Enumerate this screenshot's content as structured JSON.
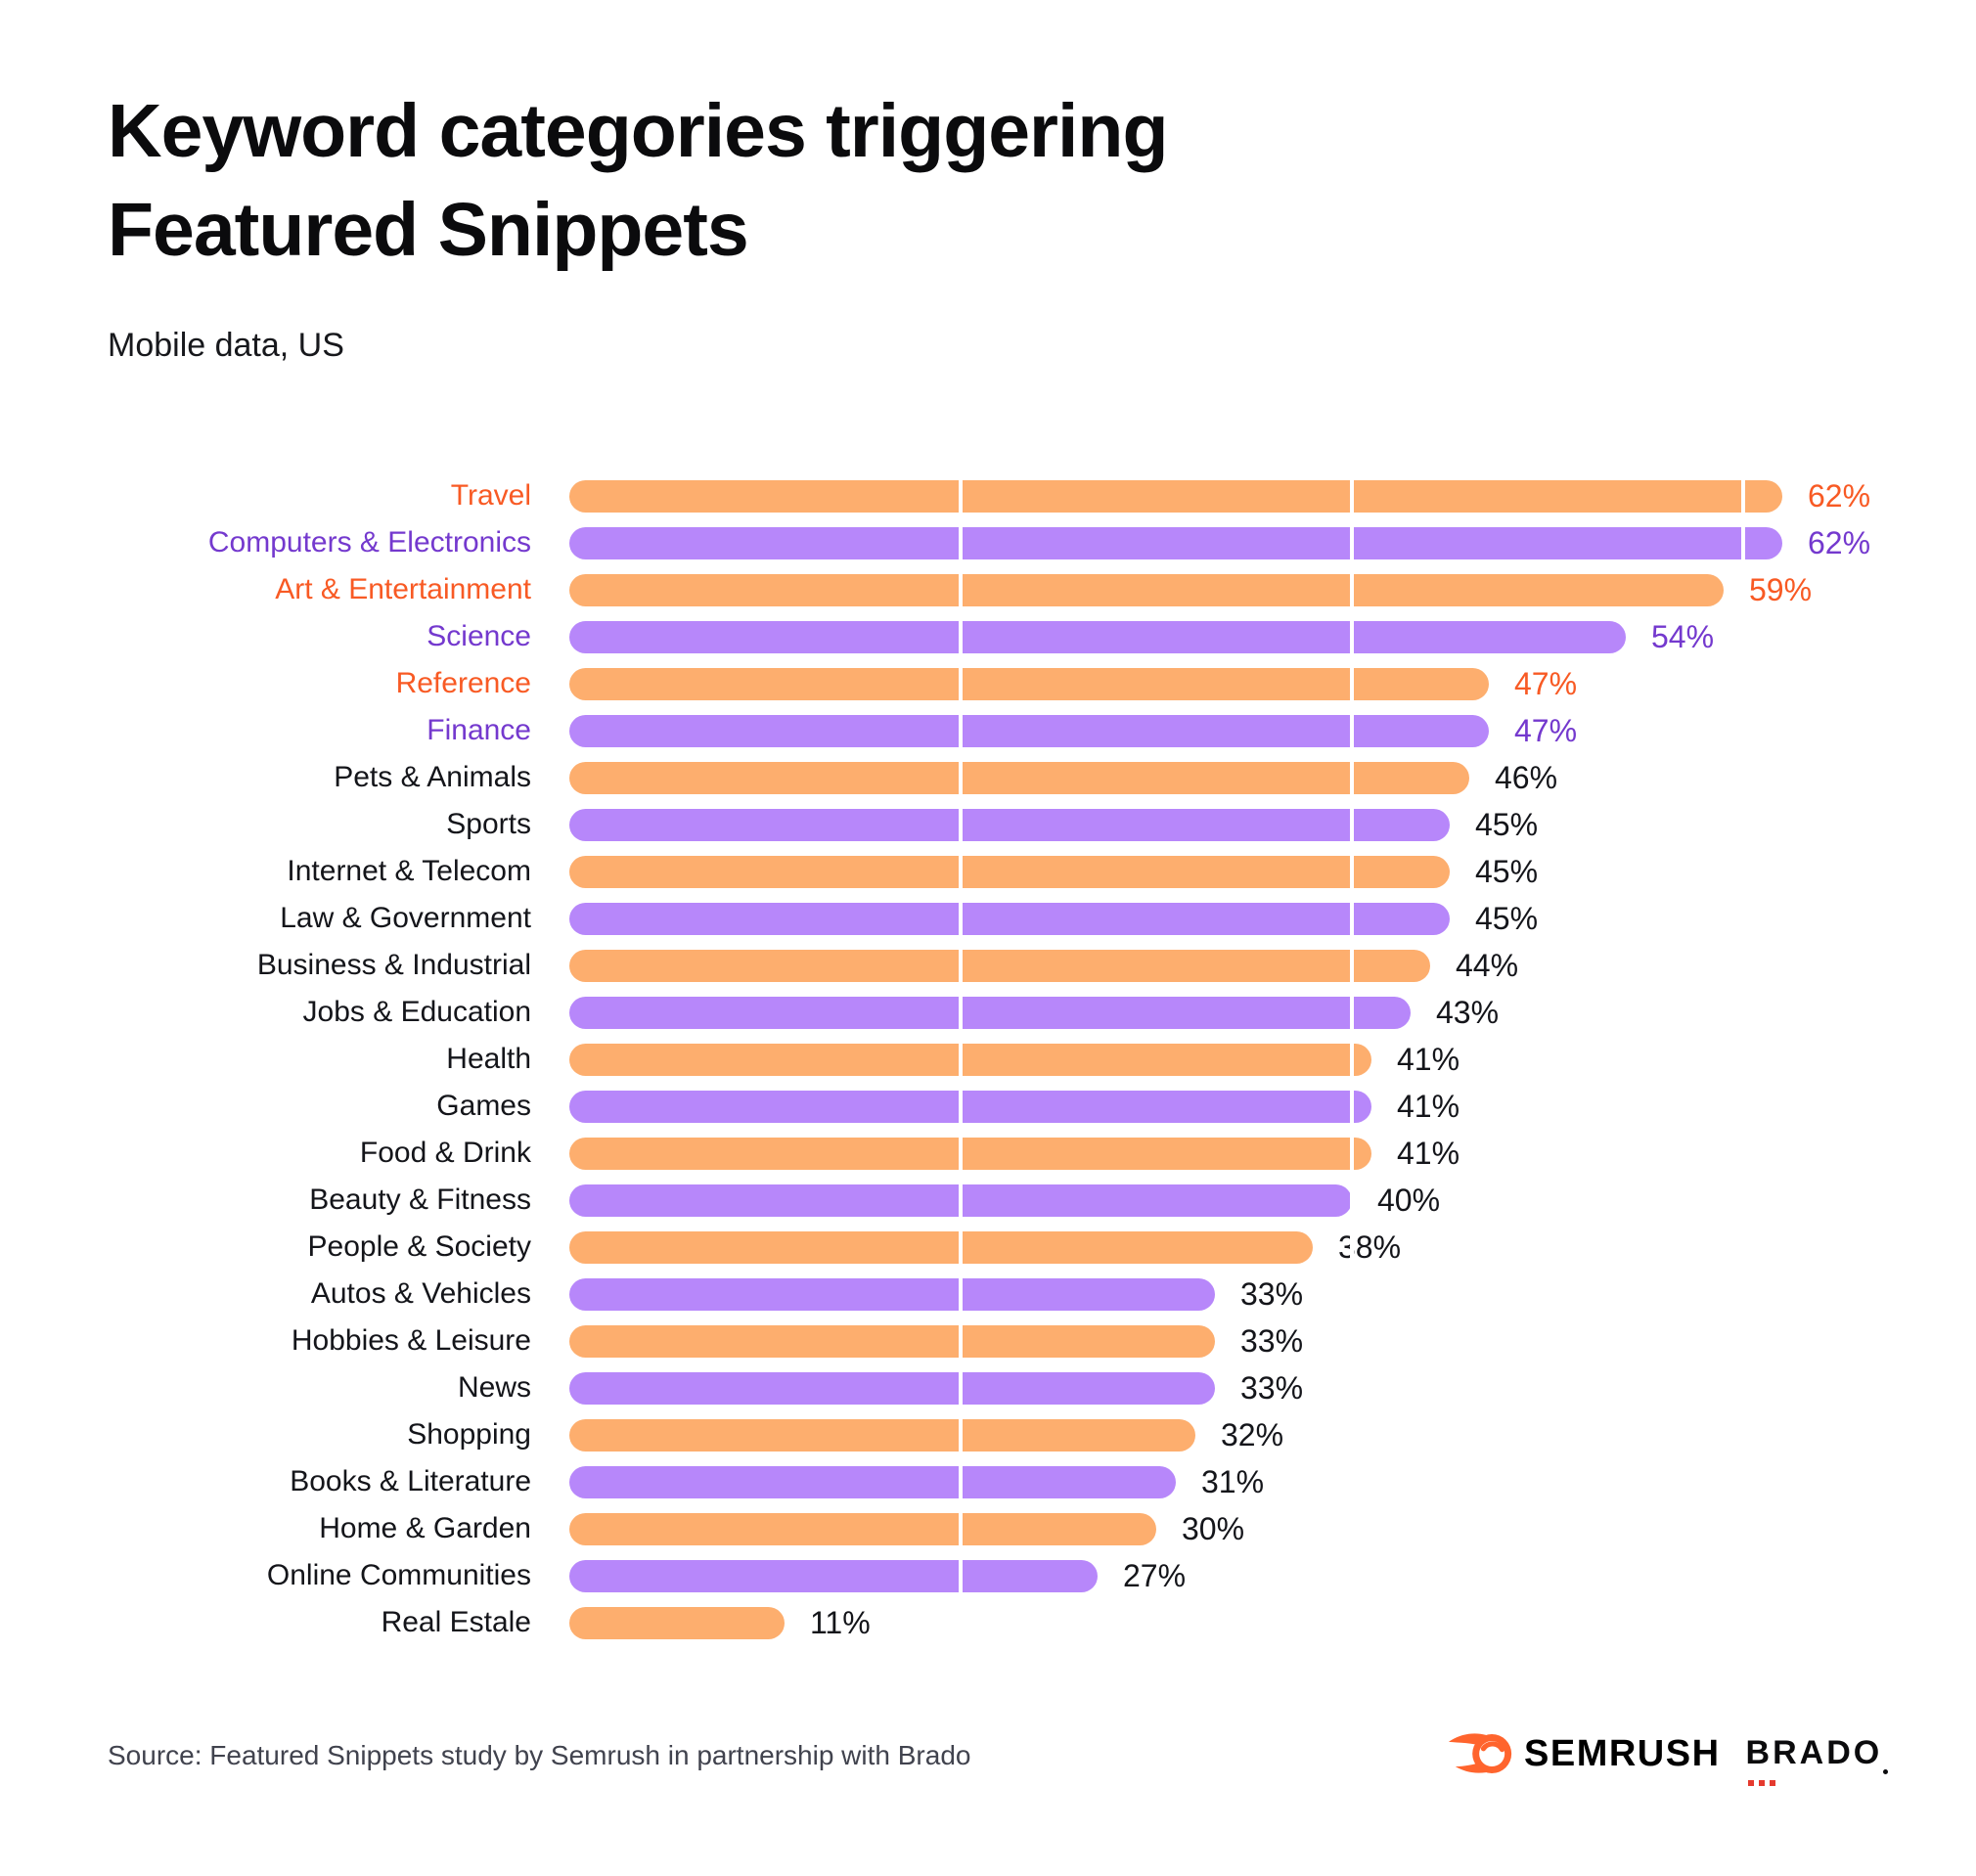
{
  "header": {
    "title": "Keyword categories triggering Featured Snippets",
    "subtitle": "Mobile data, US"
  },
  "chart_data": {
    "type": "bar",
    "orientation": "horizontal",
    "title": "Keyword categories triggering Featured Snippets",
    "subtitle": "Mobile data, US",
    "unit": "%",
    "xlim": [
      0,
      65
    ],
    "gridlines_percent": [
      20,
      40,
      60
    ],
    "grid": "vertical-white-lines-over-bars",
    "legend": "none",
    "colored_label_count": 6,
    "categories": [
      "Travel",
      "Computers & Electronics",
      "Art & Entertainment",
      "Science",
      "Reference",
      "Finance",
      "Pets & Animals",
      "Sports",
      "Internet & Telecom",
      "Law & Government",
      "Business & Industrial",
      "Jobs & Education",
      "Health",
      "Games",
      "Food & Drink",
      "Beauty & Fitness",
      "People & Society",
      "Autos & Vehicles",
      "Hobbies & Leisure",
      "News",
      "Shopping",
      "Books & Literature",
      "Home & Garden",
      "Online Communities",
      "Real Estale"
    ],
    "values": [
      62,
      62,
      59,
      54,
      47,
      47,
      46,
      45,
      45,
      45,
      44,
      43,
      41,
      41,
      41,
      40,
      38,
      33,
      33,
      33,
      32,
      31,
      30,
      27,
      11
    ],
    "value_labels": [
      "62%",
      "62%",
      "59%",
      "54%",
      "47%",
      "47%",
      "46%",
      "45%",
      "45%",
      "45%",
      "44%",
      "43%",
      "41%",
      "41%",
      "41%",
      "40%",
      "38%",
      "33%",
      "33%",
      "33%",
      "32%",
      "31%",
      "30%",
      "27%",
      "11%"
    ],
    "colors": {
      "bar_orange": "#FDAE6E",
      "bar_purple": "#B787FA",
      "accent_text_orange": "#F85A24",
      "accent_text_purple": "#7439CE",
      "text_dark": "#14151A"
    }
  },
  "footer": {
    "source": "Source: Featured Snippets study by Semrush in partnership with Brado",
    "semrush_label": "SEMRUSH",
    "brado_label": "BRADO"
  }
}
